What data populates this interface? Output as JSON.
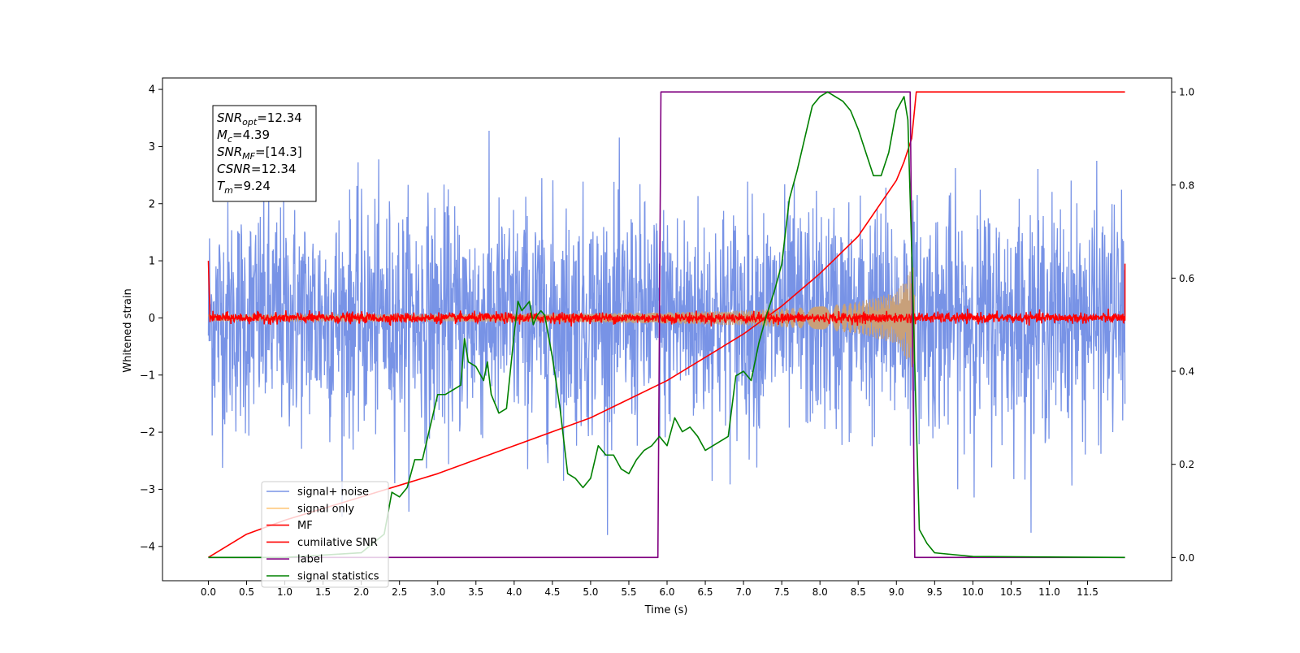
{
  "chart_data": {
    "type": "line",
    "xlabel": "Time (s)",
    "ylabel": "Whitened strain",
    "x_ticks": [
      "0.0",
      "0.5",
      "1.0",
      "1.5",
      "2.0",
      "2.5",
      "3.0",
      "3.5",
      "4.0",
      "4.5",
      "5.0",
      "5.5",
      "6.0",
      "6.5",
      "7.0",
      "7.5",
      "8.0",
      "8.5",
      "9.0",
      "9.5",
      "10.0",
      "10.5",
      "11.0",
      "11.5"
    ],
    "y_left_ticks": [
      "4",
      "3",
      "2",
      "1",
      "0",
      "−1",
      "−2",
      "−3",
      "−4"
    ],
    "y_right_ticks": [
      "1.0",
      "0.8",
      "0.6",
      "0.4",
      "0.2",
      "0.0"
    ],
    "xlim": [
      -0.6,
      12.6
    ],
    "ylim_left": [
      -4.6,
      4.2
    ],
    "ylim_right": [
      -0.05,
      1.03
    ],
    "annotation": [
      {
        "var": "SNR",
        "sub": "opt",
        "value": "=12.34"
      },
      {
        "var": "M",
        "sub": "c",
        "value": "=4.39"
      },
      {
        "var": "SNR",
        "sub": "MF",
        "value": "=[14.3]"
      },
      {
        "var": "CSNR",
        "sub": "",
        "value": "=12.34"
      },
      {
        "var": "T",
        "sub": "m",
        "value": "=9.24"
      }
    ],
    "legend": [
      {
        "label": "signal+ noise",
        "color": "#7893e6"
      },
      {
        "label": "signal only",
        "color": "#ffc87c"
      },
      {
        "label": "MF",
        "color": "#ff0000"
      },
      {
        "label": "cumilative SNR",
        "color": "#ff0000"
      },
      {
        "label": "label",
        "color": "#800080"
      },
      {
        "label": "signal statistics",
        "color": "#008000"
      }
    ],
    "series": [
      {
        "name": "signal+ noise",
        "axis": "left",
        "color": "#7893e6",
        "x_start": 0.0,
        "x_end": 11.99,
        "amplitude_std": 1.0,
        "range": [
          -3.8,
          3.8
        ]
      },
      {
        "name": "signal only",
        "axis": "left",
        "color": "#c8a07a",
        "x": [
          0.0,
          3.0,
          5.0,
          6.0,
          7.0,
          8.0,
          8.5,
          9.0,
          9.24
        ],
        "envelope": [
          0.05,
          0.06,
          0.08,
          0.1,
          0.13,
          0.2,
          0.28,
          0.45,
          0.95
        ]
      },
      {
        "name": "MF",
        "axis": "left",
        "color": "#ff0000",
        "x_start": 0.0,
        "x_end": 11.99,
        "mean": 0.0,
        "range": [
          -0.15,
          0.2
        ],
        "edge_values": [
          1.0,
          0.95
        ]
      },
      {
        "name": "cumilative SNR",
        "axis": "right",
        "color": "#ff0000",
        "x": [
          0.0,
          0.5,
          1.0,
          2.0,
          3.0,
          4.0,
          5.0,
          6.0,
          7.0,
          7.5,
          8.0,
          8.5,
          9.0,
          9.1,
          9.2,
          9.26,
          11.99
        ],
        "values": [
          0.0,
          0.05,
          0.08,
          0.13,
          0.18,
          0.24,
          0.3,
          0.38,
          0.48,
          0.54,
          0.61,
          0.69,
          0.81,
          0.85,
          0.9,
          1.0,
          1.0
        ]
      },
      {
        "name": "label",
        "axis": "right",
        "color": "#800080",
        "x": [
          0.0,
          5.88,
          5.92,
          9.18,
          9.24,
          11.99
        ],
        "values": [
          0.0,
          0.0,
          1.0,
          1.0,
          0.0,
          0.0
        ]
      },
      {
        "name": "signal statistics",
        "axis": "right",
        "color": "#008000",
        "x": [
          0.0,
          1.0,
          2.0,
          2.3,
          2.4,
          2.5,
          2.6,
          2.7,
          2.8,
          2.9,
          3.0,
          3.1,
          3.2,
          3.3,
          3.35,
          3.4,
          3.5,
          3.6,
          3.65,
          3.7,
          3.8,
          3.9,
          4.0,
          4.05,
          4.1,
          4.2,
          4.25,
          4.3,
          4.35,
          4.4,
          4.5,
          4.6,
          4.7,
          4.8,
          4.9,
          5.0,
          5.1,
          5.2,
          5.3,
          5.4,
          5.5,
          5.6,
          5.7,
          5.8,
          5.9,
          6.0,
          6.1,
          6.2,
          6.3,
          6.4,
          6.5,
          6.6,
          6.7,
          6.8,
          6.9,
          7.0,
          7.1,
          7.2,
          7.3,
          7.4,
          7.5,
          7.6,
          7.7,
          7.8,
          7.9,
          8.0,
          8.1,
          8.2,
          8.3,
          8.4,
          8.5,
          8.6,
          8.7,
          8.8,
          8.9,
          9.0,
          9.1,
          9.15,
          9.2,
          9.25,
          9.3,
          9.4,
          9.5,
          10.0,
          11.0,
          11.99
        ],
        "values": [
          0.0,
          0.0,
          0.01,
          0.05,
          0.14,
          0.13,
          0.15,
          0.21,
          0.21,
          0.28,
          0.35,
          0.35,
          0.36,
          0.37,
          0.47,
          0.42,
          0.41,
          0.38,
          0.42,
          0.35,
          0.31,
          0.32,
          0.48,
          0.55,
          0.53,
          0.55,
          0.5,
          0.52,
          0.53,
          0.52,
          0.43,
          0.32,
          0.18,
          0.17,
          0.15,
          0.17,
          0.24,
          0.22,
          0.22,
          0.19,
          0.18,
          0.21,
          0.23,
          0.24,
          0.26,
          0.24,
          0.3,
          0.27,
          0.28,
          0.26,
          0.23,
          0.24,
          0.25,
          0.26,
          0.39,
          0.4,
          0.38,
          0.46,
          0.52,
          0.57,
          0.63,
          0.77,
          0.83,
          0.9,
          0.97,
          0.99,
          1.0,
          0.99,
          0.98,
          0.96,
          0.92,
          0.87,
          0.82,
          0.82,
          0.87,
          0.96,
          0.99,
          0.94,
          0.66,
          0.35,
          0.06,
          0.03,
          0.01,
          0.002,
          0.001,
          0.0
        ]
      }
    ]
  }
}
